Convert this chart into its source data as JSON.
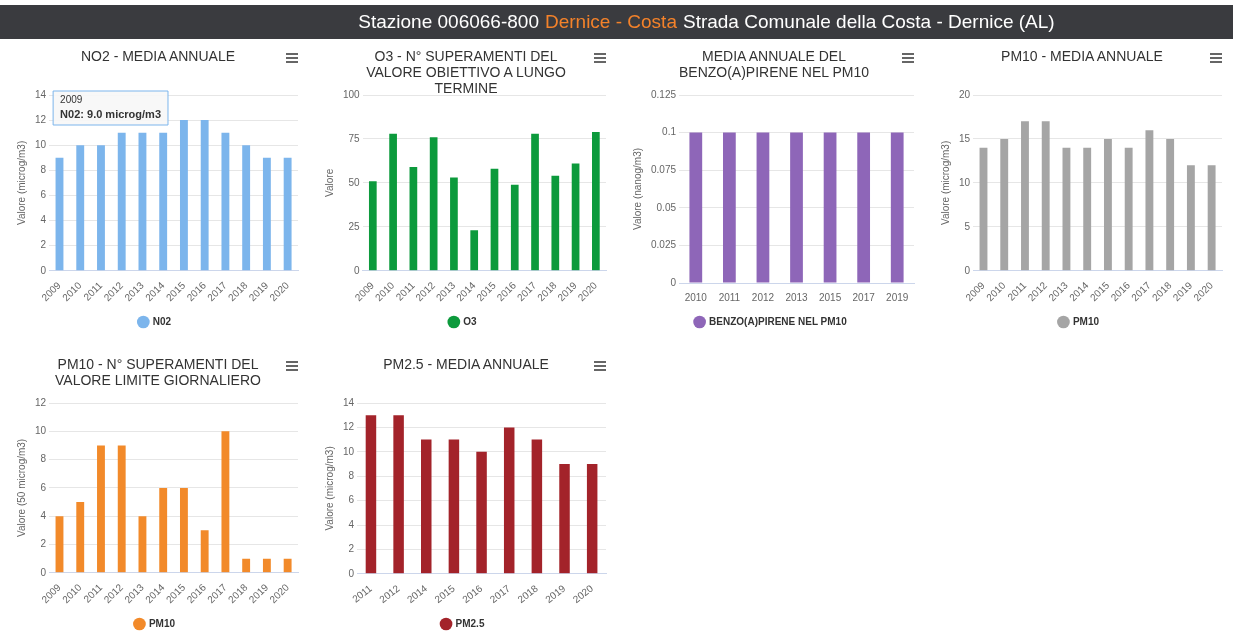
{
  "chart_data": [
    {
      "type": "other",
      "title": "Stazione 006066-800",
      "subtitle": "Dernice - Costa",
      "annotations": [
        "Strada Comunale della Costa - Dernice (AL)"
      ]
    },
    {
      "type": "bar",
      "title": "NO2 - MEDIA ANNUALE",
      "ylabel": "Valore (microg/m3)",
      "categories": [
        "2009",
        "2010",
        "2011",
        "2012",
        "2013",
        "2014",
        "2015",
        "2016",
        "2017",
        "2018",
        "2019",
        "2020"
      ],
      "series": [
        {
          "name": "N02",
          "color": "#7cb5ec",
          "values": [
            9,
            10,
            10,
            11,
            11,
            11,
            12,
            12,
            11,
            10,
            9,
            9
          ]
        }
      ],
      "ylim": [
        0,
        14
      ],
      "yticks": [
        0,
        2,
        4,
        6,
        8,
        10,
        12,
        14
      ],
      "grid": "y",
      "legend": "bottom",
      "annotations": [
        "2009\nN02: 9.0 microg/m3"
      ]
    },
    {
      "type": "bar",
      "title": "O3 - N° SUPERAMENTI DEL VALORE OBIETTIVO A LUNGO TERMINE",
      "ylabel": "Valore",
      "categories": [
        "2009",
        "2010",
        "2011",
        "2012",
        "2013",
        "2014",
        "2015",
        "2016",
        "2017",
        "2018",
        "2019",
        "2020"
      ],
      "series": [
        {
          "name": "O3",
          "color": "#0c9a3c",
          "values": [
            51,
            78,
            59,
            76,
            53,
            23,
            58,
            49,
            78,
            54,
            61,
            79
          ]
        }
      ],
      "ylim": [
        0,
        100
      ],
      "yticks": [
        0,
        25,
        50,
        75,
        100
      ],
      "grid": "y",
      "legend": "bottom"
    },
    {
      "type": "bar",
      "title": "MEDIA ANNUALE DEL BENZO(A)PIRENE NEL PM10",
      "ylabel": "Valore (nanog/m3)",
      "categories": [
        "2010",
        "2011",
        "2012",
        "2013",
        "2015",
        "2017",
        "2019"
      ],
      "series": [
        {
          "name": "BENZO(A)PIRENE NEL PM10",
          "color": "#8e66b8",
          "values": [
            0.1,
            0.1,
            0.1,
            0.1,
            0.1,
            0.1,
            0.1
          ]
        }
      ],
      "ylim": [
        0,
        0.125
      ],
      "yticks": [
        0,
        0.025,
        0.05,
        0.075,
        0.1,
        0.125
      ],
      "grid": "y",
      "legend": "bottom"
    },
    {
      "type": "bar",
      "title": "PM10 - MEDIA ANNUALE",
      "ylabel": "Valore (microg/m3)",
      "categories": [
        "2009",
        "2010",
        "2011",
        "2012",
        "2013",
        "2014",
        "2015",
        "2016",
        "2017",
        "2018",
        "2019",
        "2020"
      ],
      "series": [
        {
          "name": "PM10",
          "color": "#a5a5a5",
          "values": [
            14,
            15,
            17,
            17,
            14,
            14,
            15,
            14,
            16,
            15,
            12,
            12
          ]
        }
      ],
      "ylim": [
        0,
        20
      ],
      "yticks": [
        0,
        5,
        10,
        15,
        20
      ],
      "grid": "y",
      "legend": "bottom"
    },
    {
      "type": "bar",
      "title": "PM10 - N° SUPERAMENTI DEL VALORE LIMITE GIORNALIERO",
      "ylabel": "Valore (50 microg/m3)",
      "categories": [
        "2009",
        "2010",
        "2011",
        "2012",
        "2013",
        "2014",
        "2015",
        "2016",
        "2017",
        "2018",
        "2019",
        "2020"
      ],
      "series": [
        {
          "name": "PM10",
          "color": "#f28a2a",
          "values": [
            4,
            5,
            9,
            9,
            4,
            6,
            6,
            3,
            10,
            1,
            1,
            1
          ]
        }
      ],
      "ylim": [
        0,
        12
      ],
      "yticks": [
        0,
        2,
        4,
        6,
        8,
        10,
        12
      ],
      "grid": "y",
      "legend": "bottom"
    },
    {
      "type": "bar",
      "title": "PM2.5 - MEDIA ANNUALE",
      "ylabel": "Valore (microg/m3)",
      "categories": [
        "2011",
        "2012",
        "2014",
        "2015",
        "2016",
        "2017",
        "2018",
        "2019",
        "2020"
      ],
      "series": [
        {
          "name": "PM2.5",
          "color": "#a3232a",
          "values": [
            13,
            13,
            11,
            11,
            10,
            12,
            11,
            9,
            9
          ]
        }
      ],
      "ylim": [
        0,
        14
      ],
      "yticks": [
        0,
        2,
        4,
        6,
        8,
        10,
        12,
        14
      ],
      "grid": "y",
      "legend": "bottom"
    }
  ]
}
